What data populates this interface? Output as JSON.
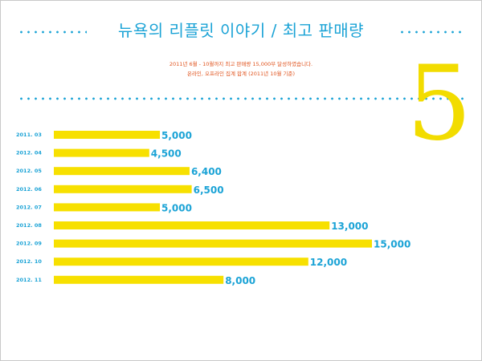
{
  "title": "뉴욕의 리플릿 이야기 / 최고 판매량",
  "subtitle": [
    "2011년 6월 - 10월까지 최고 판매량 15,000부 달성하였습니다.",
    "온라인, 오프라인 집계 합계 (2011년 10월 기준)"
  ],
  "big_number": "5",
  "colors": {
    "accent": "#1ba3d6",
    "bar": "#f7e000",
    "highlight": "#f2dc00",
    "subtitle": "#e0531d"
  },
  "chart_data": {
    "type": "bar",
    "orientation": "horizontal",
    "categories": [
      "2011. 03",
      "2012. 04",
      "2012. 05",
      "2012. 06",
      "2012. 07",
      "2012. 08",
      "2012. 09",
      "2012. 10",
      "2012. 11"
    ],
    "values": [
      5000,
      4500,
      6400,
      6500,
      5000,
      13000,
      15000,
      12000,
      8000
    ],
    "value_labels": [
      "5,000",
      "4,500",
      "6,400",
      "6,500",
      "5,000",
      "13,000",
      "15,000",
      "12,000",
      "8,000"
    ],
    "xlim": [
      0,
      15000
    ],
    "grid": false
  }
}
